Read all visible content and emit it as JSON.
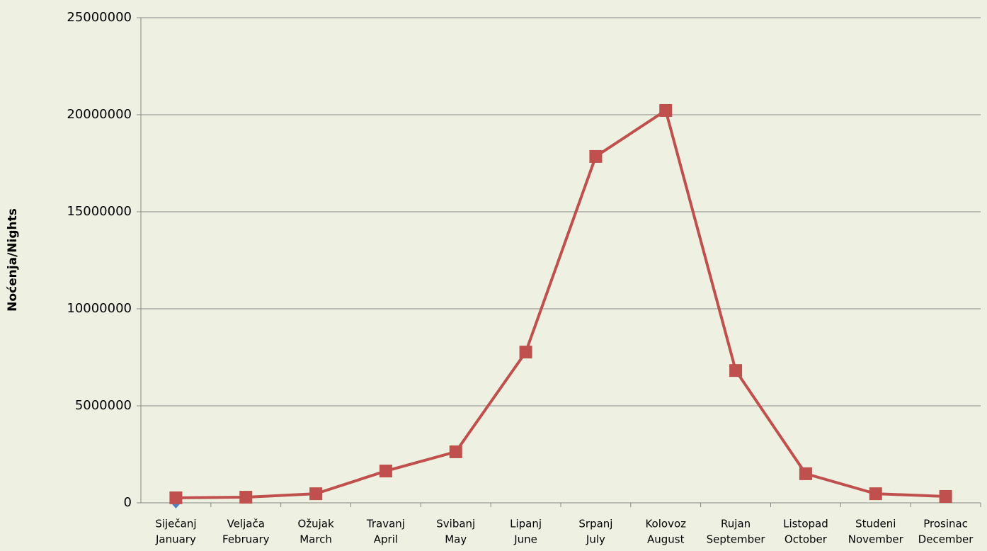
{
  "chart_data": {
    "type": "line",
    "y_label": "Noćenja/Nights",
    "categories": [
      [
        "Siječanj",
        "January"
      ],
      [
        "Veljača",
        "February"
      ],
      [
        "Ožujak",
        "March"
      ],
      [
        "Travanj",
        "April"
      ],
      [
        "Svibanj",
        "May"
      ],
      [
        "Lipanj",
        "June"
      ],
      [
        "Srpanj",
        "July"
      ],
      [
        "Kolovoz",
        "August"
      ],
      [
        "Rujan",
        "September"
      ],
      [
        "Listopad",
        "October"
      ],
      [
        "Studeni",
        "November"
      ],
      [
        "Prosinac",
        "December"
      ]
    ],
    "series": [
      {
        "color": "#4f81bd",
        "marker": "diamond",
        "values": [
          0,
          null,
          null,
          null,
          null,
          null,
          null,
          null,
          null,
          null,
          null,
          null
        ]
      },
      {
        "color": "#c0504d",
        "marker": "square",
        "values": [
          260000,
          290000,
          470000,
          1640000,
          2630000,
          7770000,
          17850000,
          20220000,
          6820000,
          1500000,
          470000,
          330000
        ]
      }
    ],
    "ylim": [
      0,
      25000000
    ],
    "yticks": [
      0,
      5000000,
      10000000,
      15000000,
      20000000,
      25000000
    ],
    "grid": true
  }
}
